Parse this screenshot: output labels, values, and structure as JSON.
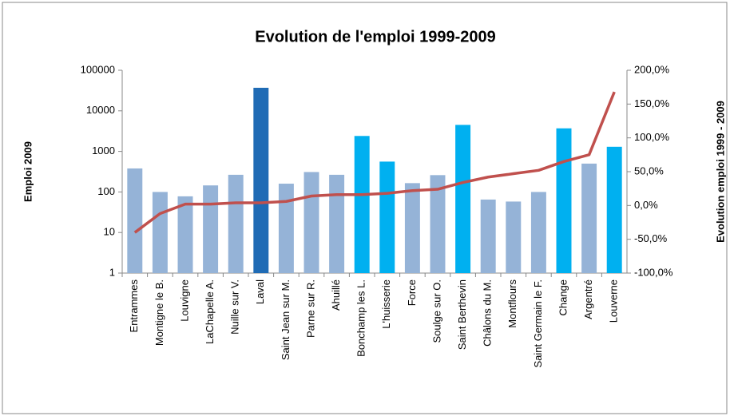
{
  "chart_data": {
    "type": "bar",
    "title": "Evolution de l'emploi 1999-2009",
    "y_label": "Emploi 2009",
    "y2_label": "Evolution emploi 1999 - 2009",
    "categories": [
      "Entrammes",
      "Montigne le B.",
      "Louvigne",
      "LaChapelle A.",
      "Nuille sur V.",
      "Laval",
      "Saint Jean sur M.",
      "Parne sur R.",
      "Ahuillé",
      "Bonchamp les L.",
      "L'huisserie",
      "Force",
      "Soulge sur O.",
      "Saint Berthevin",
      "Châlons du M.",
      "Montflours",
      "Saint Germain le F.",
      "Change",
      "Argentré",
      "Louverne"
    ],
    "y_log": true,
    "ylim": [
      1,
      100000
    ],
    "yticks": [
      1,
      10,
      100,
      1000,
      10000,
      100000
    ],
    "y2lim": [
      -100,
      200
    ],
    "y2ticks": [
      {
        "value": -100,
        "label": "-100,0%"
      },
      {
        "value": -50,
        "label": "-50,0%"
      },
      {
        "value": 0,
        "label": "0,0%"
      },
      {
        "value": 50,
        "label": "50,0%"
      },
      {
        "value": 100,
        "label": "100,0%"
      },
      {
        "value": 150,
        "label": "150,0%"
      },
      {
        "value": 200,
        "label": "200,0%"
      }
    ],
    "series": [
      {
        "type": "bar",
        "values": [
          380,
          100,
          78,
          145,
          265,
          37000,
          160,
          310,
          265,
          2400,
          560,
          165,
          260,
          4500,
          65,
          58,
          100,
          3700,
          500,
          1300
        ],
        "colors": [
          "#95b3d7",
          "#95b3d7",
          "#95b3d7",
          "#95b3d7",
          "#95b3d7",
          "#1f6bb5",
          "#95b3d7",
          "#95b3d7",
          "#95b3d7",
          "#00b0f0",
          "#00b0f0",
          "#95b3d7",
          "#95b3d7",
          "#00b0f0",
          "#95b3d7",
          "#95b3d7",
          "#95b3d7",
          "#00b0f0",
          "#95b3d7",
          "#00b0f0"
        ]
      },
      {
        "type": "line",
        "axis": "y2",
        "color": "#c0504d",
        "values": [
          -40,
          -12,
          2,
          2,
          4,
          4,
          6,
          14,
          16,
          16,
          18,
          22,
          24,
          34,
          42,
          47,
          52,
          65,
          75,
          168
        ]
      }
    ]
  }
}
